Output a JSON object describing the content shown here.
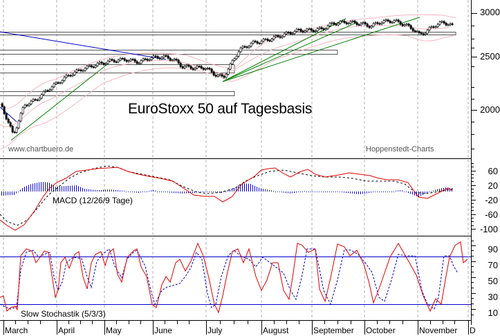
{
  "chart_data": [
    {
      "type": "candlestick",
      "title": "EuroStoxx 50 auf Tagesbasis",
      "panel": "price",
      "ylim": [
        1700,
        3050
      ],
      "y_ticks": [
        3000,
        2500,
        2000
      ],
      "x_categories": [
        "March",
        "April",
        "May",
        "June",
        "July",
        "August",
        "September",
        "October",
        "November",
        "D"
      ],
      "close_approx": [
        {
          "x": "March",
          "value": 2050
        },
        {
          "x": "mid-March",
          "value": 1780
        },
        {
          "x": "April",
          "value": 2150
        },
        {
          "x": "May",
          "value": 2480
        },
        {
          "x": "June",
          "value": 2540
        },
        {
          "x": "mid-June",
          "value": 2400
        },
        {
          "x": "July",
          "value": 2360
        },
        {
          "x": "mid-July",
          "value": 2290
        },
        {
          "x": "August",
          "value": 2660
        },
        {
          "x": "September",
          "value": 2860
        },
        {
          "x": "October",
          "value": 2920
        },
        {
          "x": "mid-October",
          "value": 2790
        },
        {
          "x": "November",
          "value": 2730
        },
        {
          "x": "late-November",
          "value": 2870
        }
      ],
      "overlays": [
        "Bollinger bands (pink)",
        "Descending trendline (blue)",
        "Ascending trendlines (green)",
        "Horizontal support/resistance zones (grey boxes)"
      ],
      "support_zones": [
        2780,
        2560,
        2380,
        2150
      ],
      "annotations": [
        "www.chartbuero.de",
        "Hoppenstedt-Charts"
      ]
    },
    {
      "type": "line",
      "panel": "macd",
      "title": "MACD (12/26/9 Tage)",
      "ylim": [
        -110,
        80
      ],
      "y_ticks": [
        60,
        20,
        -20,
        -60,
        -100
      ],
      "series": [
        {
          "name": "MACD",
          "color": "#e00000",
          "values": [
            -70,
            -100,
            -60,
            -10,
            30,
            60,
            50,
            55,
            40,
            20,
            0,
            -15,
            50,
            60,
            40,
            45,
            35,
            35,
            30,
            20,
            -15,
            0,
            20
          ]
        },
        {
          "name": "Signal",
          "color": "#000000",
          "style": "dashed",
          "values": [
            -60,
            -90,
            -75,
            -25,
            20,
            50,
            55,
            50,
            45,
            25,
            5,
            -5,
            30,
            55,
            45,
            40,
            38,
            35,
            30,
            25,
            0,
            0,
            15
          ]
        },
        {
          "name": "Histogram",
          "color": "#0000cc",
          "type": "bar"
        }
      ]
    },
    {
      "type": "line",
      "panel": "stochastic",
      "title": "Slow Stochastik (5/3/3)",
      "ylim": [
        0,
        100
      ],
      "y_ticks": [
        90,
        70,
        50,
        30,
        10
      ],
      "reference_lines": [
        80,
        20
      ],
      "series": [
        {
          "name": "%K",
          "color": "#e00000"
        },
        {
          "name": "%D",
          "color": "#0000cc",
          "style": "dashed"
        }
      ]
    }
  ],
  "price_panel": {
    "title": "EuroStoxx 50 auf Tagesbasis",
    "credit_left": "www.chartbuero.de",
    "credit_right": "Hoppenstedt-Charts",
    "y_labels": [
      "3000",
      "2500",
      "2000"
    ]
  },
  "macd_panel": {
    "label": "MACD (12/26/9 Tage)",
    "y_labels": [
      "60",
      "20",
      "-20",
      "-60",
      "-100"
    ]
  },
  "stoch_panel": {
    "label": "Slow Stochastik (5/3/3)",
    "y_labels": [
      "90",
      "70",
      "50",
      "30",
      "10"
    ]
  },
  "x_axis": {
    "months": [
      "March",
      "April",
      "May",
      "June",
      "July",
      "August",
      "September",
      "October",
      "November",
      "D"
    ]
  },
  "colors": {
    "candle": "#000000",
    "bollinger": "#f4b6c2",
    "trend_down": "#0000cc",
    "trend_up": "#008000",
    "macd_line": "#e00000",
    "signal_line": "#000000",
    "histogram": "#0000cc",
    "stoch_k": "#e00000",
    "stoch_d": "#0000cc",
    "ref_line": "#0000cc",
    "grid": "#aaaaaa"
  }
}
